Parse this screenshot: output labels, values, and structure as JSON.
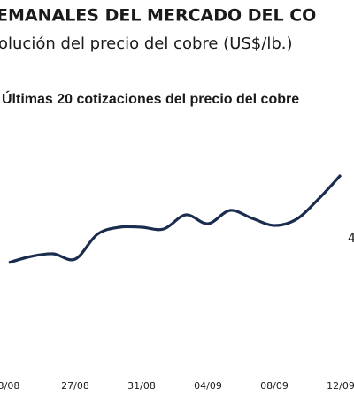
{
  "chart_data": {
    "type": "line",
    "title": "EMANALES DEL MERCADO DEL CO",
    "subtitle": "olución del precio del cobre (US$/lb.)",
    "chart_title": "Últimas 20 cotizaciones del precio del cobre",
    "annotation": "4",
    "categories": [
      "3/08",
      null,
      null,
      "27/08",
      null,
      null,
      "31/08",
      null,
      null,
      "04/09",
      null,
      null,
      "08/09",
      null,
      null,
      "12/09"
    ],
    "series": [
      {
        "color": "#1b2d4f",
        "values": [
          123,
          130,
          133,
          127,
          155,
          163,
          163,
          161,
          177,
          167,
          182,
          173,
          165,
          172,
          195,
          222
        ]
      }
    ],
    "ylim": [
      0,
      290
    ]
  }
}
